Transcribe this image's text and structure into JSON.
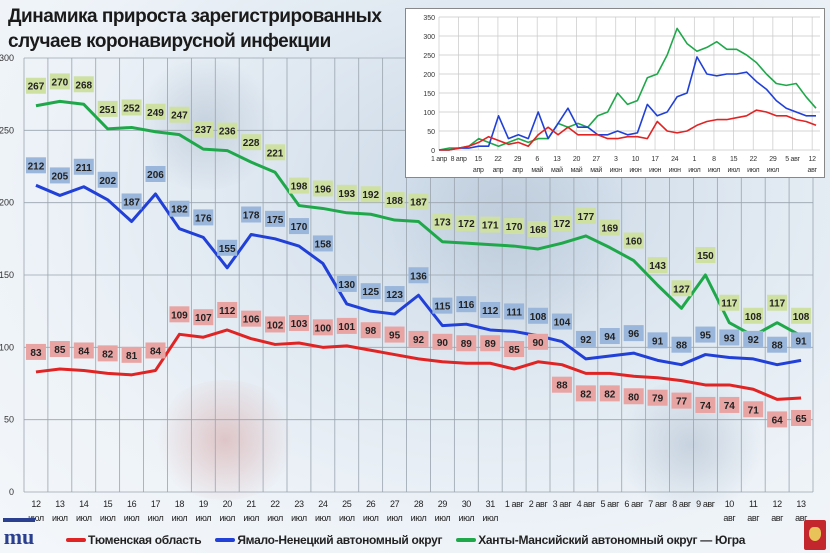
{
  "title_line1": "Динамика прироста зарегистрированных",
  "title_line2": "случаев коронавирусной инфекции",
  "colors": {
    "tyumen": "#e02424",
    "yamal": "#2040d8",
    "khmao": "#1fa84a",
    "tyumen_label": "#e8a3a3",
    "yamal_label": "#9ab6da",
    "khmao_label": "#cfe0a3"
  },
  "legend": [
    "Тюменская область",
    "Ямало-Ненецкий автономный округ",
    "Ханты-Мансийский автономный округ — Югра"
  ],
  "logo_text": "mu",
  "chart_data": [
    {
      "type": "line",
      "title": "Динамика прироста зарегистрированных случаев коронавирусной инфекции",
      "ylim": [
        0,
        300
      ],
      "yticks": [
        "0",
        "50",
        "100",
        "150",
        "200",
        "250",
        "300"
      ],
      "grid": true,
      "legend_position": "bottom",
      "categories": [
        [
          "12",
          "июл"
        ],
        [
          "13",
          "июл"
        ],
        [
          "14",
          "июл"
        ],
        [
          "15",
          "июл"
        ],
        [
          "16",
          "июл"
        ],
        [
          "17",
          "июл"
        ],
        [
          "18",
          "июл"
        ],
        [
          "19",
          "июл"
        ],
        [
          "20",
          "июл"
        ],
        [
          "21",
          "июл"
        ],
        [
          "22",
          "июл"
        ],
        [
          "23",
          "июл"
        ],
        [
          "24",
          "июл"
        ],
        [
          "25",
          "июл"
        ],
        [
          "26",
          "июл"
        ],
        [
          "27",
          "июл"
        ],
        [
          "28",
          "июл"
        ],
        [
          "29",
          "июл"
        ],
        [
          "30",
          "июл"
        ],
        [
          "31",
          "июл"
        ],
        [
          "1 авг",
          ""
        ],
        [
          "2 авг",
          ""
        ],
        [
          "3 авг",
          ""
        ],
        [
          "4 авг",
          ""
        ],
        [
          "5 авг",
          ""
        ],
        [
          "6 авг",
          ""
        ],
        [
          "7 авг",
          ""
        ],
        [
          "8 авг",
          ""
        ],
        [
          "9 авг",
          ""
        ],
        [
          "10",
          "авг"
        ],
        [
          "11",
          "авг"
        ],
        [
          "12",
          "авг"
        ],
        [
          "13",
          "авг"
        ]
      ],
      "series": [
        {
          "name": "Ханты-Мансийский автономный округ — Югра",
          "key": "khmao",
          "values": [
            267,
            270,
            268,
            251,
            252,
            249,
            247,
            237,
            236,
            228,
            221,
            198,
            196,
            193,
            192,
            188,
            187,
            173,
            172,
            171,
            170,
            168,
            172,
            177,
            169,
            160,
            143,
            127,
            150,
            117,
            108,
            117,
            108
          ]
        },
        {
          "name": "Ямало-Ненецкий автономный округ",
          "key": "yamal",
          "values": [
            212,
            205,
            211,
            202,
            187,
            206,
            182,
            176,
            155,
            178,
            175,
            170,
            158,
            130,
            125,
            123,
            136,
            115,
            116,
            112,
            111,
            108,
            104,
            92,
            94,
            96,
            91,
            88,
            95,
            93,
            92,
            88,
            91
          ]
        },
        {
          "name": "Тюменская область",
          "key": "tyumen",
          "values": [
            83,
            85,
            84,
            82,
            81,
            84,
            109,
            107,
            112,
            106,
            102,
            103,
            100,
            101,
            98,
            95,
            92,
            90,
            89,
            89,
            85,
            90,
            88,
            82,
            82,
            80,
            79,
            77,
            74,
            74,
            71,
            64,
            65
          ]
        }
      ]
    },
    {
      "type": "line",
      "title": "",
      "ylim": [
        0,
        350
      ],
      "yticks": [
        "0",
        "50",
        "100",
        "150",
        "200",
        "250",
        "300",
        "350"
      ],
      "grid": true,
      "xticks": [
        [
          "1 апр",
          ""
        ],
        [
          "8 апр",
          ""
        ],
        [
          "15",
          "апр"
        ],
        [
          "22",
          "апр"
        ],
        [
          "29",
          "апр"
        ],
        [
          "6",
          "май"
        ],
        [
          "13",
          "май"
        ],
        [
          "20",
          "май"
        ],
        [
          "27",
          "май"
        ],
        [
          "3",
          "июн"
        ],
        [
          "10",
          "июн"
        ],
        [
          "17",
          "июн"
        ],
        [
          "24",
          "июн"
        ],
        [
          "1",
          "июл"
        ],
        [
          "8",
          "июл"
        ],
        [
          "15",
          "июл"
        ],
        [
          "22",
          "июл"
        ],
        [
          "29",
          "июл"
        ],
        [
          "5 авг",
          ""
        ],
        [
          "12",
          "авг"
        ]
      ],
      "series": [
        {
          "name": "Ханты-Мансийский автономный округ — Югра",
          "key": "khmao",
          "values": [
            0,
            5,
            5,
            10,
            30,
            20,
            10,
            20,
            30,
            20,
            30,
            30,
            70,
            60,
            70,
            60,
            90,
            100,
            150,
            120,
            130,
            190,
            200,
            250,
            320,
            280,
            260,
            270,
            285,
            265,
            265,
            250,
            230,
            200,
            175,
            170,
            175,
            140,
            110
          ]
        },
        {
          "name": "Ямало-Ненецкий автономный округ",
          "key": "yamal",
          "values": [
            0,
            0,
            5,
            5,
            10,
            10,
            90,
            30,
            40,
            30,
            100,
            30,
            70,
            110,
            60,
            60,
            40,
            40,
            50,
            40,
            45,
            120,
            90,
            100,
            140,
            150,
            245,
            200,
            195,
            200,
            200,
            205,
            180,
            160,
            130,
            110,
            100,
            90,
            90
          ]
        },
        {
          "name": "Тюменская область",
          "key": "tyumen",
          "values": [
            0,
            0,
            5,
            10,
            20,
            35,
            25,
            15,
            20,
            10,
            40,
            60,
            40,
            60,
            40,
            40,
            40,
            30,
            30,
            35,
            35,
            30,
            75,
            50,
            45,
            50,
            65,
            75,
            80,
            80,
            85,
            90,
            105,
            100,
            90,
            90,
            80,
            75,
            65
          ]
        }
      ]
    }
  ]
}
